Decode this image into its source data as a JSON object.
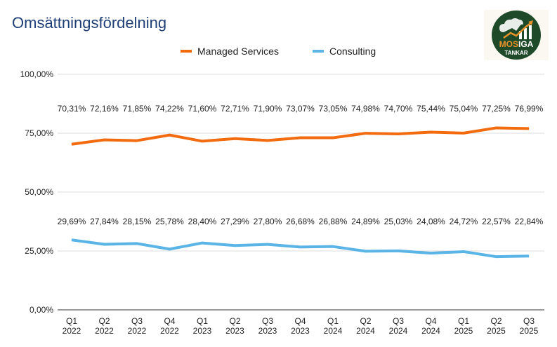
{
  "chart_data": {
    "type": "line",
    "title": "Omsättningsfördelning",
    "categories": [
      "Q1 2022",
      "Q2 2022",
      "Q3 2022",
      "Q4 2022",
      "Q1 2023",
      "Q2 2023",
      "Q3 2023",
      "Q4 2023",
      "Q1 2024",
      "Q2 2024",
      "Q3 2024",
      "Q4 2024",
      "Q1 2025",
      "Q2 2025",
      "Q3 2025"
    ],
    "series": [
      {
        "name": "Managed Services",
        "color": "#f26b0f",
        "values": [
          70.31,
          72.16,
          71.85,
          74.22,
          71.6,
          72.71,
          71.9,
          73.07,
          73.05,
          74.98,
          74.7,
          75.44,
          75.04,
          77.25,
          76.99
        ]
      },
      {
        "name": "Consulting",
        "color": "#5ab4e5",
        "values": [
          29.69,
          27.84,
          28.15,
          25.78,
          28.4,
          27.29,
          27.8,
          26.68,
          26.88,
          24.89,
          25.03,
          24.08,
          24.72,
          22.57,
          22.84
        ]
      }
    ],
    "ylim": [
      0,
      100
    ],
    "yticks": [
      "0,00%",
      "25,00%",
      "50,00%",
      "75,00%",
      "100,00%"
    ],
    "grid": true,
    "legend": "top"
  },
  "logo": {
    "text1": "MOS",
    "text2": "IGA",
    "text3": "TANKAR"
  }
}
